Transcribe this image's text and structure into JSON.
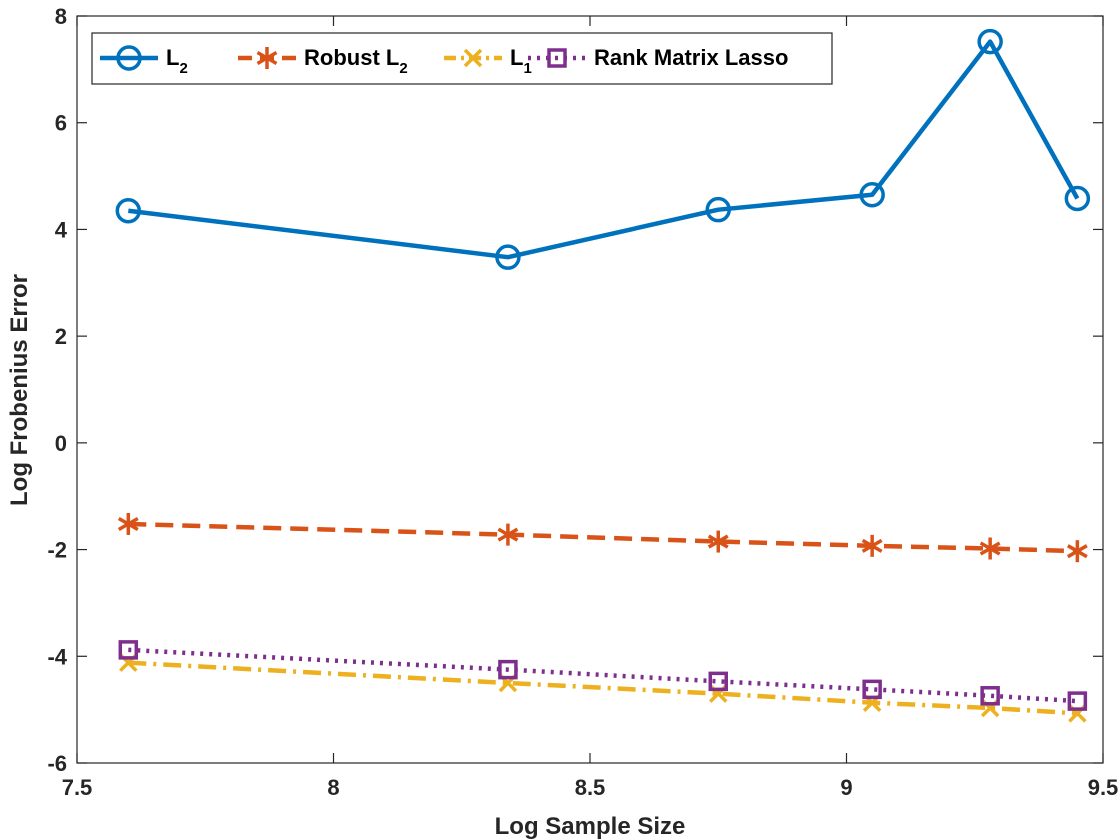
{
  "chart_data": {
    "type": "line",
    "xlabel": "Log Sample Size",
    "ylabel": "Log Frobenius Error",
    "xlim": [
      7.5,
      9.5
    ],
    "ylim": [
      -6,
      8
    ],
    "xticks": [
      "7.5",
      "8",
      "8.5",
      "9",
      "9.5"
    ],
    "yticks": [
      "-6",
      "-4",
      "-2",
      "0",
      "2",
      "4",
      "6",
      "8"
    ],
    "x": [
      7.6,
      8.34,
      8.75,
      9.05,
      9.28,
      9.45
    ],
    "grid": false,
    "legend_position": "top-left",
    "series": [
      {
        "name": "L2",
        "name_main": "L",
        "name_sub": "2",
        "color": "#0072BD",
        "line": "solid",
        "marker": "circle",
        "values": [
          4.35,
          3.48,
          4.37,
          4.65,
          7.52,
          4.58
        ]
      },
      {
        "name": "Robust L2",
        "name_main": "Robust L",
        "name_sub": "2",
        "color": "#D95319",
        "line": "dashed",
        "marker": "asterisk",
        "values": [
          -1.52,
          -1.72,
          -1.85,
          -1.93,
          -1.98,
          -2.03
        ]
      },
      {
        "name": "L1",
        "name_main": "L",
        "name_sub": "1",
        "color": "#EDB120",
        "line": "dashdot",
        "marker": "x",
        "values": [
          -4.12,
          -4.5,
          -4.7,
          -4.87,
          -4.97,
          -5.07
        ]
      },
      {
        "name": "Rank Matrix Lasso",
        "name_main": "Rank Matrix Lasso",
        "name_sub": "",
        "color": "#7E2F8E",
        "line": "dotted",
        "marker": "square",
        "values": [
          -3.88,
          -4.25,
          -4.47,
          -4.62,
          -4.74,
          -4.84
        ]
      }
    ]
  }
}
